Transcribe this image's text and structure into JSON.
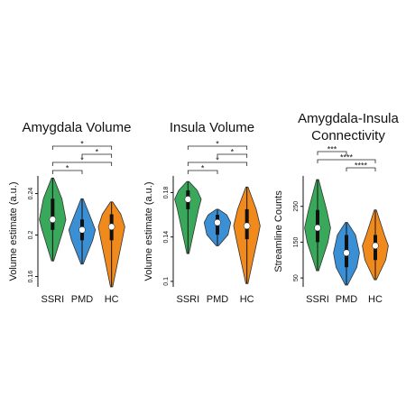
{
  "chart_data": [
    {
      "type": "violin",
      "title": "Amygdala Volume",
      "y_label": "Volume estimate (a.u.)",
      "categories": [
        "SSRI",
        "PMD",
        "HC"
      ],
      "series": [
        {
          "name": "SSRI",
          "color": "#3aa85a",
          "min": 0.175,
          "q1": 0.205,
          "median": 0.215,
          "q3": 0.235,
          "max": 0.255
        },
        {
          "name": "PMD",
          "color": "#3b8fd4",
          "min": 0.172,
          "q1": 0.195,
          "median": 0.205,
          "q3": 0.215,
          "max": 0.235
        },
        {
          "name": "HC",
          "color": "#f08a1c",
          "min": 0.15,
          "q1": 0.195,
          "median": 0.208,
          "q3": 0.22,
          "max": 0.232
        }
      ],
      "ylim": [
        0.15,
        0.257
      ],
      "yticks": [
        0.16,
        0.2,
        0.24
      ],
      "brackets": [
        {
          "from": "SSRI",
          "to": "HC",
          "label": "*"
        },
        {
          "from": "PMD",
          "to": "HC",
          "label": "*"
        },
        {
          "from": "SSRI",
          "to": "HC",
          "label": "*"
        },
        {
          "from": "SSRI",
          "to": "PMD",
          "label": "*"
        }
      ]
    },
    {
      "type": "violin",
      "title": "Insula Volume",
      "y_label": "Volume estimate (a.u.)",
      "categories": [
        "SSRI",
        "PMD",
        "HC"
      ],
      "series": [
        {
          "name": "SSRI",
          "color": "#3aa85a",
          "min": 0.125,
          "q1": 0.165,
          "median": 0.174,
          "q3": 0.182,
          "max": 0.19
        },
        {
          "name": "PMD",
          "color": "#3b8fd4",
          "min": 0.132,
          "q1": 0.142,
          "median": 0.153,
          "q3": 0.16,
          "max": 0.165
        },
        {
          "name": "HC",
          "color": "#f08a1c",
          "min": 0.098,
          "q1": 0.138,
          "median": 0.15,
          "q3": 0.165,
          "max": 0.185
        }
      ],
      "ylim": [
        0.095,
        0.195
      ],
      "yticks": [
        0.1,
        0.14,
        0.18
      ],
      "brackets": [
        {
          "from": "SSRI",
          "to": "HC",
          "label": "*"
        },
        {
          "from": "PMD",
          "to": "HC",
          "label": "*"
        },
        {
          "from": "SSRI",
          "to": "HC",
          "label": "*"
        },
        {
          "from": "SSRI",
          "to": "PMD",
          "label": "*"
        }
      ]
    },
    {
      "type": "violin",
      "title": "Amygdala-Insula Connectivity",
      "y_label": "Streamline Counts",
      "categories": [
        "SSRI",
        "PMD",
        "HC"
      ],
      "series": [
        {
          "name": "SSRI",
          "color": "#3aa85a",
          "min": 70,
          "q1": 150,
          "median": 190,
          "q3": 240,
          "max": 325
        },
        {
          "name": "PMD",
          "color": "#3b8fd4",
          "min": 30,
          "q1": 80,
          "median": 120,
          "q3": 170,
          "max": 205
        },
        {
          "name": "HC",
          "color": "#f08a1c",
          "min": 45,
          "q1": 100,
          "median": 140,
          "q3": 170,
          "max": 240
        }
      ],
      "ylim": [
        25,
        335
      ],
      "yticks": [
        50,
        150,
        250
      ],
      "brackets": [
        {
          "from": "SSRI",
          "to": "PMD",
          "label": "***"
        },
        {
          "from": "SSRI",
          "to": "HC",
          "label": "****"
        },
        {
          "from": "PMD",
          "to": "HC",
          "label": "****"
        }
      ]
    }
  ]
}
